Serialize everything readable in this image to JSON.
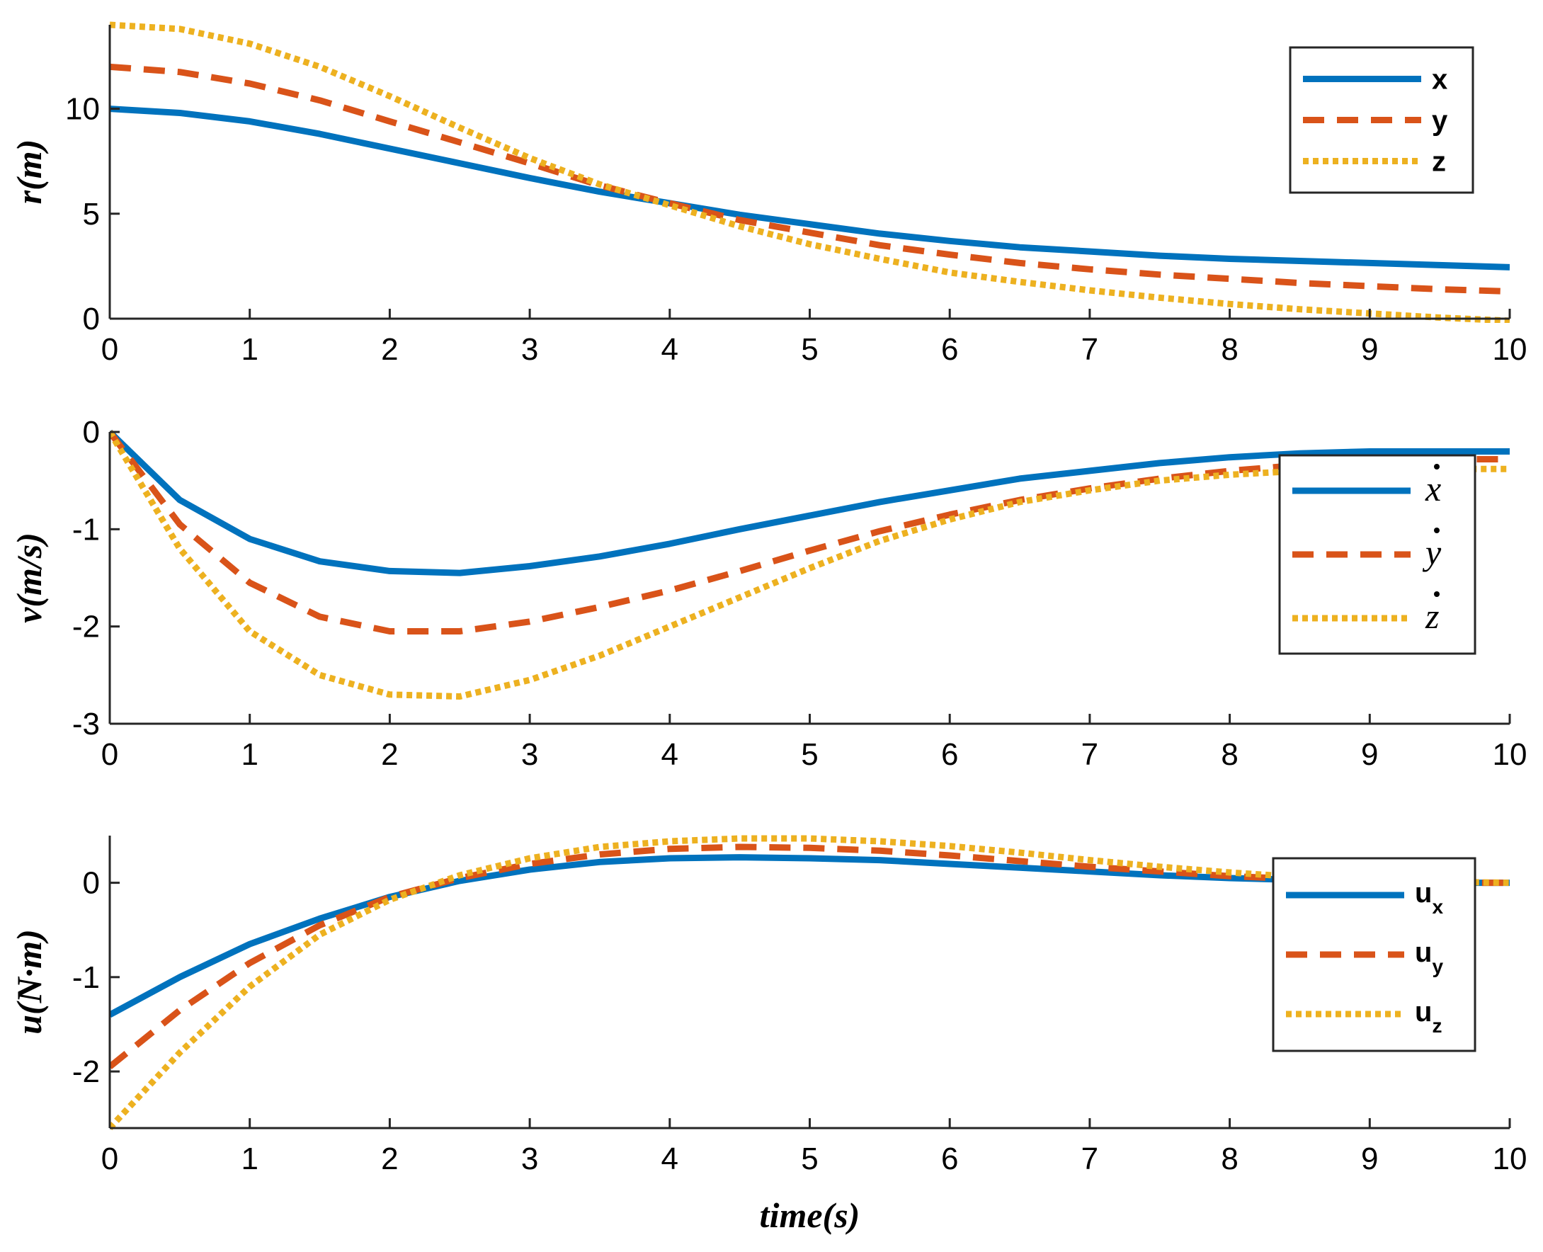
{
  "chart_data": [
    {
      "type": "line",
      "id": "position",
      "xlabel": "",
      "ylabel": "r(m)",
      "xlim": [
        0,
        10
      ],
      "ylim": [
        0,
        14
      ],
      "xticks": [
        "0",
        "1",
        "2",
        "3",
        "4",
        "5",
        "6",
        "7",
        "8",
        "9",
        "10"
      ],
      "yticks": [
        "0",
        "5",
        "10"
      ],
      "yticks_values": [
        0,
        5,
        10
      ],
      "legend_position": "top-right",
      "x": [
        0,
        0.5,
        1,
        1.5,
        2,
        2.5,
        3,
        3.5,
        4,
        4.5,
        5,
        5.5,
        6,
        6.5,
        7,
        7.5,
        8,
        8.5,
        9,
        9.5,
        10
      ],
      "series": [
        {
          "name": "x",
          "label": "x",
          "label_style": "plain",
          "color": "#0072BD",
          "dash": "solid",
          "values": [
            10,
            9.8,
            9.4,
            8.8,
            8.1,
            7.4,
            6.7,
            6.05,
            5.5,
            4.95,
            4.5,
            4.05,
            3.7,
            3.4,
            3.2,
            3.0,
            2.85,
            2.75,
            2.65,
            2.55,
            2.45
          ]
        },
        {
          "name": "y",
          "label": "y",
          "label_style": "plain",
          "color": "#D95319",
          "dash": "dashed",
          "values": [
            12,
            11.75,
            11.2,
            10.4,
            9.4,
            8.4,
            7.4,
            6.35,
            5.5,
            4.7,
            4.1,
            3.5,
            3.05,
            2.65,
            2.35,
            2.1,
            1.9,
            1.7,
            1.55,
            1.4,
            1.3
          ]
        },
        {
          "name": "z",
          "label": "z",
          "label_style": "plain",
          "color": "#EDB120",
          "dash": "dotted",
          "values": [
            14,
            13.8,
            13.1,
            12,
            10.6,
            9.1,
            7.65,
            6.4,
            5.4,
            4.4,
            3.55,
            2.85,
            2.2,
            1.75,
            1.35,
            1.0,
            0.7,
            0.45,
            0.25,
            0.05,
            -0.1
          ]
        }
      ]
    },
    {
      "type": "line",
      "id": "velocity",
      "xlabel": "",
      "ylabel": "v(m/s)",
      "xlim": [
        0,
        10
      ],
      "ylim": [
        -3,
        0
      ],
      "xticks": [
        "0",
        "1",
        "2",
        "3",
        "4",
        "5",
        "6",
        "7",
        "8",
        "9",
        "10"
      ],
      "yticks": [
        "0",
        "-1",
        "-2",
        "-3"
      ],
      "yticks_values": [
        0,
        -1,
        -2,
        -3
      ],
      "legend_position": "right",
      "x": [
        0,
        0.5,
        1,
        1.5,
        2,
        2.5,
        3,
        3.5,
        4,
        4.5,
        5,
        5.5,
        6,
        6.5,
        7,
        7.5,
        8,
        8.5,
        9,
        9.5,
        10
      ],
      "series": [
        {
          "name": "xdot",
          "label": "x",
          "label_style": "dot",
          "color": "#0072BD",
          "dash": "solid",
          "values": [
            0,
            -0.7,
            -1.1,
            -1.33,
            -1.43,
            -1.45,
            -1.38,
            -1.28,
            -1.15,
            -1.0,
            -0.86,
            -0.72,
            -0.6,
            -0.48,
            -0.4,
            -0.32,
            -0.26,
            -0.22,
            -0.2,
            -0.2,
            -0.2
          ]
        },
        {
          "name": "ydot",
          "label": "y",
          "label_style": "dot",
          "color": "#D95319",
          "dash": "dashed",
          "values": [
            0,
            -0.95,
            -1.55,
            -1.9,
            -2.05,
            -2.05,
            -1.95,
            -1.8,
            -1.63,
            -1.43,
            -1.22,
            -1.02,
            -0.85,
            -0.7,
            -0.58,
            -0.48,
            -0.4,
            -0.34,
            -0.3,
            -0.28,
            -0.28
          ]
        },
        {
          "name": "zdot",
          "label": "z",
          "label_style": "dot",
          "color": "#EDB120",
          "dash": "dotted",
          "values": [
            0,
            -1.2,
            -2.05,
            -2.5,
            -2.7,
            -2.72,
            -2.55,
            -2.3,
            -2.0,
            -1.7,
            -1.4,
            -1.12,
            -0.9,
            -0.72,
            -0.6,
            -0.5,
            -0.44,
            -0.4,
            -0.38,
            -0.38,
            -0.38
          ]
        }
      ]
    },
    {
      "type": "line",
      "id": "control",
      "xlabel": "time(s)",
      "ylabel": "u(N·m)",
      "xlim": [
        0,
        10
      ],
      "ylim": [
        -2.6,
        0.5
      ],
      "xticks": [
        "0",
        "1",
        "2",
        "3",
        "4",
        "5",
        "6",
        "7",
        "8",
        "9",
        "10"
      ],
      "yticks": [
        "0",
        "-1",
        "-2"
      ],
      "yticks_values": [
        0,
        -1,
        -2
      ],
      "legend_position": "right",
      "x": [
        0,
        0.5,
        1,
        1.5,
        2,
        2.5,
        3,
        3.5,
        4,
        4.5,
        5,
        5.5,
        6,
        6.5,
        7,
        7.5,
        8,
        8.5,
        9,
        9.5,
        10
      ],
      "series": [
        {
          "name": "ux",
          "label": "u",
          "sub": "x",
          "label_style": "sub",
          "color": "#0072BD",
          "dash": "solid",
          "values": [
            -1.4,
            -1.0,
            -0.65,
            -0.38,
            -0.15,
            0.02,
            0.14,
            0.22,
            0.26,
            0.27,
            0.26,
            0.24,
            0.2,
            0.16,
            0.12,
            0.08,
            0.05,
            0.03,
            0.01,
            0.0,
            0.0
          ]
        },
        {
          "name": "uy",
          "label": "u",
          "sub": "y",
          "label_style": "sub",
          "color": "#D95319",
          "dash": "dashed",
          "values": [
            -1.95,
            -1.35,
            -0.85,
            -0.45,
            -0.15,
            0.05,
            0.2,
            0.3,
            0.36,
            0.38,
            0.37,
            0.34,
            0.29,
            0.23,
            0.17,
            0.12,
            0.07,
            0.04,
            0.02,
            0.0,
            0.0
          ]
        },
        {
          "name": "uz",
          "label": "u",
          "sub": "z",
          "label_style": "sub",
          "color": "#EDB120",
          "dash": "dotted",
          "values": [
            -2.6,
            -1.8,
            -1.1,
            -0.55,
            -0.18,
            0.08,
            0.26,
            0.38,
            0.44,
            0.47,
            0.47,
            0.44,
            0.39,
            0.32,
            0.24,
            0.17,
            0.11,
            0.06,
            0.03,
            0.01,
            0.0
          ]
        }
      ]
    }
  ]
}
